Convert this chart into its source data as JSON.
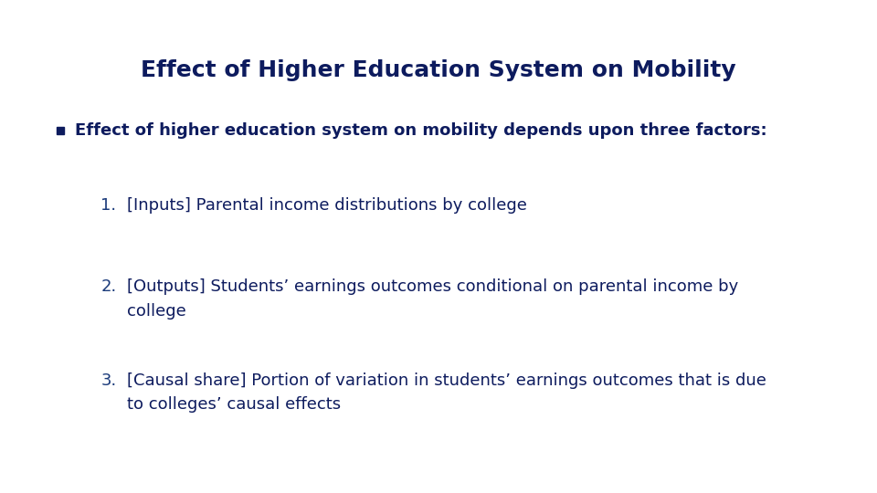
{
  "title": "Effect of Higher Education System on Mobility",
  "title_color": "#0d1b5e",
  "title_fontsize": 18,
  "background_color": "#ffffff",
  "bullet_text": "Effect of higher education system on mobility depends upon three factors:",
  "bullet_color": "#0d1b5e",
  "bullet_fontsize": 13,
  "bullet_square_color": "#0d1b5e",
  "items": [
    {
      "number": "1.",
      "text": "[Inputs] Parental income distributions by college",
      "multiline": false
    },
    {
      "number": "2.",
      "text": "[Outputs] Students’ earnings outcomes conditional on parental income by\ncollege",
      "multiline": true
    },
    {
      "number": "3.",
      "text": "[Causal share] Portion of variation in students’ earnings outcomes that is due\nto colleges’ causal effects",
      "multiline": true
    }
  ],
  "item_fontsize": 13,
  "item_number_color": "#1a3a7a",
  "item_text_color": "#0d1b5e"
}
